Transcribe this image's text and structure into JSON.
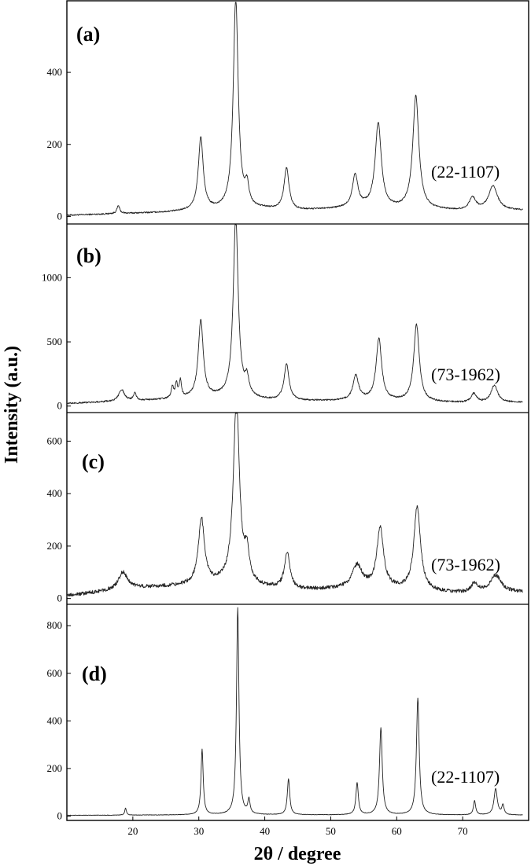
{
  "chart_data": [
    {
      "type": "line",
      "panel_label": "(a)",
      "annotation": "(22-1107)",
      "xlim": [
        10,
        80
      ],
      "ylim": [
        -10,
        590
      ],
      "yticks": [
        0,
        200,
        400
      ],
      "baseline": [
        [
          10,
          3
        ],
        [
          17,
          7
        ],
        [
          25,
          11
        ],
        [
          29,
          15
        ],
        [
          35,
          18
        ],
        [
          40,
          20
        ],
        [
          45,
          16
        ],
        [
          50,
          20
        ],
        [
          55,
          24
        ],
        [
          60,
          20
        ],
        [
          65,
          18
        ],
        [
          70,
          15
        ],
        [
          75,
          16
        ],
        [
          80,
          17
        ]
      ],
      "peaks": [
        {
          "x": 17.8,
          "y": 22,
          "w": 0.25
        },
        {
          "x": 30.3,
          "y": 200,
          "w": 0.45
        },
        {
          "x": 35.6,
          "y": 585,
          "w": 0.45
        },
        {
          "x": 37.3,
          "y": 55,
          "w": 0.35
        },
        {
          "x": 43.3,
          "y": 115,
          "w": 0.45
        },
        {
          "x": 53.7,
          "y": 90,
          "w": 0.5
        },
        {
          "x": 57.2,
          "y": 235,
          "w": 0.55
        },
        {
          "x": 62.9,
          "y": 315,
          "w": 0.55
        },
        {
          "x": 71.5,
          "y": 35,
          "w": 0.6
        },
        {
          "x": 74.6,
          "y": 68,
          "w": 0.8
        }
      ],
      "noise": 2
    },
    {
      "type": "line",
      "panel_label": "(b)",
      "annotation": "(73-1962)",
      "xlim": [
        10,
        80
      ],
      "ylim": [
        -20,
        1400
      ],
      "yticks": [
        0,
        500,
        1000
      ],
      "baseline": [
        [
          10,
          20
        ],
        [
          15,
          30
        ],
        [
          20,
          40
        ],
        [
          25,
          50
        ],
        [
          29,
          60
        ],
        [
          35,
          70
        ],
        [
          40,
          45
        ],
        [
          45,
          40
        ],
        [
          50,
          40
        ],
        [
          55,
          45
        ],
        [
          60,
          38
        ],
        [
          65,
          30
        ],
        [
          70,
          25
        ],
        [
          75,
          25
        ],
        [
          80,
          30
        ]
      ],
      "peaks": [
        {
          "x": 18.3,
          "y": 90,
          "w": 0.5
        },
        {
          "x": 20.3,
          "y": 60,
          "w": 0.25
        },
        {
          "x": 26.0,
          "y": 90,
          "w": 0.2
        },
        {
          "x": 26.6,
          "y": 110,
          "w": 0.2
        },
        {
          "x": 27.2,
          "y": 130,
          "w": 0.2
        },
        {
          "x": 30.3,
          "y": 600,
          "w": 0.45
        },
        {
          "x": 35.6,
          "y": 1400,
          "w": 0.45
        },
        {
          "x": 37.3,
          "y": 130,
          "w": 0.35
        },
        {
          "x": 43.3,
          "y": 280,
          "w": 0.45
        },
        {
          "x": 53.8,
          "y": 190,
          "w": 0.5
        },
        {
          "x": 57.3,
          "y": 480,
          "w": 0.5
        },
        {
          "x": 63.0,
          "y": 600,
          "w": 0.5
        },
        {
          "x": 71.7,
          "y": 70,
          "w": 0.5
        },
        {
          "x": 74.8,
          "y": 135,
          "w": 0.6
        }
      ],
      "noise": 6
    },
    {
      "type": "line",
      "panel_label": "(c)",
      "annotation": "(73-1962)",
      "xlim": [
        10,
        80
      ],
      "ylim": [
        -10,
        700
      ],
      "yticks": [
        0,
        200,
        400,
        600
      ],
      "baseline": [
        [
          10,
          10
        ],
        [
          15,
          25
        ],
        [
          20,
          40
        ],
        [
          25,
          45
        ],
        [
          29,
          50
        ],
        [
          35,
          60
        ],
        [
          40,
          40
        ],
        [
          45,
          32
        ],
        [
          50,
          35
        ],
        [
          55,
          40
        ],
        [
          60,
          35
        ],
        [
          65,
          25
        ],
        [
          70,
          20
        ],
        [
          75,
          22
        ],
        [
          80,
          25
        ]
      ],
      "peaks": [
        {
          "x": 18.5,
          "y": 65,
          "w": 0.8
        },
        {
          "x": 30.4,
          "y": 250,
          "w": 0.55
        },
        {
          "x": 35.7,
          "y": 700,
          "w": 0.55
        },
        {
          "x": 37.3,
          "y": 110,
          "w": 0.4
        },
        {
          "x": 43.4,
          "y": 140,
          "w": 0.5
        },
        {
          "x": 54.0,
          "y": 85,
          "w": 0.9
        },
        {
          "x": 57.5,
          "y": 230,
          "w": 0.6
        },
        {
          "x": 63.1,
          "y": 320,
          "w": 0.6
        },
        {
          "x": 71.8,
          "y": 35,
          "w": 0.6
        },
        {
          "x": 75.0,
          "y": 65,
          "w": 1.0
        }
      ],
      "noise": 7
    },
    {
      "type": "line",
      "panel_label": "(d)",
      "annotation": "(22-1107)",
      "xlim": [
        10,
        80
      ],
      "ylim": [
        -5,
        880
      ],
      "yticks": [
        0,
        200,
        400,
        600,
        800
      ],
      "xticks": [
        20,
        30,
        40,
        50,
        60,
        70
      ],
      "baseline": [
        [
          10,
          3
        ],
        [
          30,
          5
        ],
        [
          50,
          5
        ],
        [
          80,
          4
        ]
      ],
      "peaks": [
        {
          "x": 18.9,
          "y": 30,
          "w": 0.15
        },
        {
          "x": 30.5,
          "y": 275,
          "w": 0.2
        },
        {
          "x": 35.9,
          "y": 870,
          "w": 0.22
        },
        {
          "x": 37.6,
          "y": 60,
          "w": 0.2
        },
        {
          "x": 43.6,
          "y": 150,
          "w": 0.22
        },
        {
          "x": 54.0,
          "y": 135,
          "w": 0.22
        },
        {
          "x": 57.6,
          "y": 365,
          "w": 0.25
        },
        {
          "x": 63.2,
          "y": 490,
          "w": 0.25
        },
        {
          "x": 71.8,
          "y": 60,
          "w": 0.2
        },
        {
          "x": 75.0,
          "y": 110,
          "w": 0.3
        },
        {
          "x": 76.1,
          "y": 40,
          "w": 0.2
        }
      ],
      "noise": 1
    }
  ],
  "xlabel": "2θ / degree",
  "ylabel": "Intensity (a.u.)",
  "colors": {
    "trace": "#222222",
    "axes": "#000000"
  }
}
